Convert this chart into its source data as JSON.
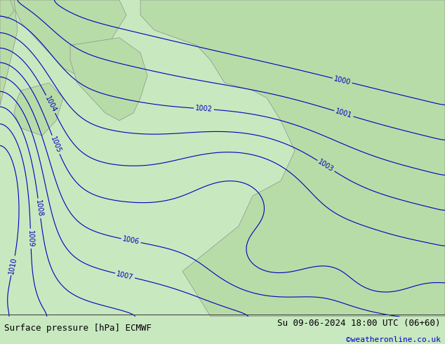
{
  "title_left": "Surface pressure [hPa] ECMWF",
  "title_right": "Su 09-06-2024 18:00 UTC (06+60)",
  "credit": "©weatheronline.co.uk",
  "bg_color": "#c8e8c0",
  "land_color": "#b8dca8",
  "sea_color": "#dcdcdc",
  "isobar_color_blue": "#0000bb",
  "isobar_color_red": "#cc0000",
  "isobar_color_black": "#000000",
  "bottom_text_color": "#000000",
  "credit_color": "#0000cc",
  "font_size_labels": 7,
  "font_size_bottom": 9
}
